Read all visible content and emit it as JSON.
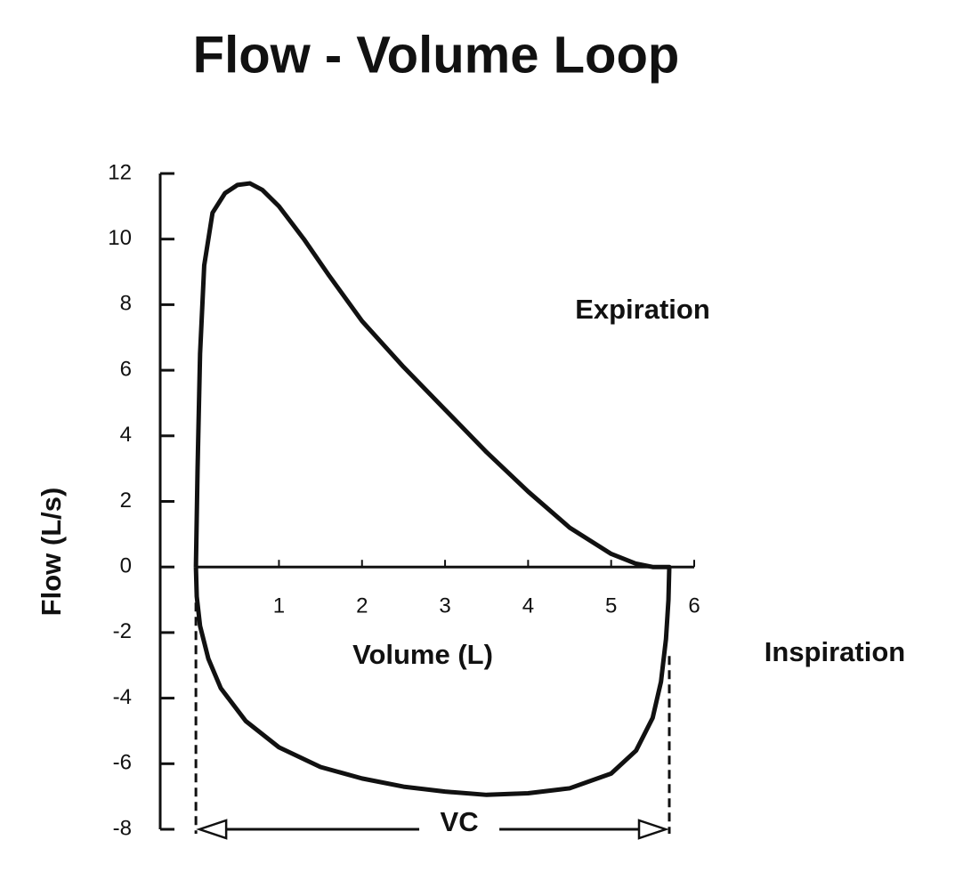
{
  "chart_data": {
    "type": "line",
    "title": "Flow - Volume Loop",
    "xlabel": "Volume (L)",
    "ylabel": "Flow (L/s)",
    "annotations": [
      "Expiration",
      "Inspiration"
    ],
    "vc": {
      "label": "VC",
      "from": 0,
      "to": 5.7
    },
    "x": [
      0,
      0.02,
      0.05,
      0.1,
      0.2,
      0.35,
      0.5,
      0.65,
      0.8,
      1,
      1.3,
      1.6,
      2,
      2.5,
      3,
      3.5,
      4,
      4.5,
      5,
      5.3,
      5.5,
      5.7,
      5.69,
      5.66,
      5.6,
      5.5,
      5.3,
      5,
      4.5,
      4,
      3.5,
      3,
      2.5,
      2,
      1.5,
      1,
      0.6,
      0.3,
      0.15,
      0.05,
      0.01,
      0
    ],
    "series": [
      {
        "color": "#111111",
        "values": [
          0,
          3,
          6.5,
          9.2,
          10.8,
          11.4,
          11.65,
          11.7,
          11.5,
          11,
          10,
          8.9,
          7.5,
          6.1,
          4.8,
          3.5,
          2.3,
          1.2,
          0.4,
          0.1,
          0,
          0,
          -1,
          -2.2,
          -3.5,
          -4.6,
          -5.6,
          -6.3,
          -6.75,
          -6.9,
          -6.95,
          -6.85,
          -6.7,
          -6.45,
          -6.1,
          -5.5,
          -4.7,
          -3.7,
          -2.8,
          -1.8,
          -0.9,
          0
        ]
      }
    ],
    "xlim": [
      -0.43,
      6
    ],
    "xticks": [
      1,
      2,
      3,
      4,
      5,
      6
    ],
    "ylim": [
      -8,
      12
    ],
    "yticks": [
      12,
      10,
      8,
      6,
      4,
      2,
      0,
      -2,
      -4,
      -6,
      -8
    ],
    "grid": false
  }
}
